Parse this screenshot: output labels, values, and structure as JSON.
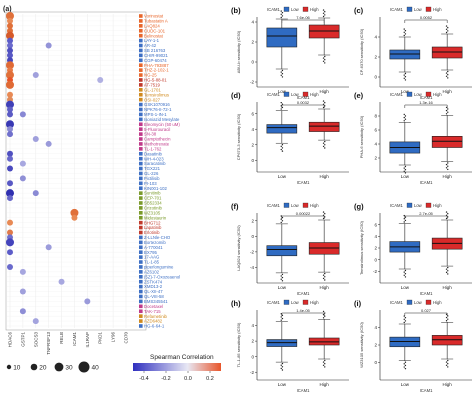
{
  "panel_a": {
    "label": "(a)",
    "drugs": [
      {
        "name": "Vorinostat",
        "color": "#e8662a"
      },
      {
        "name": "Tubastatin A",
        "color": "#e8662a"
      },
      {
        "name": "LAQ824",
        "color": "#e8662a"
      },
      {
        "name": "CUDC-101",
        "color": "#e8662a"
      },
      {
        "name": "Belinostat",
        "color": "#e8662a"
      },
      {
        "name": "LAY-1-1",
        "color": "#3d6fc4"
      },
      {
        "name": "AR-42",
        "color": "#3d6fc4"
      },
      {
        "name": "SB 216763",
        "color": "#3d6fc4"
      },
      {
        "name": "CHIR-99021",
        "color": "#3d6fc4"
      },
      {
        "name": "CGP-60474",
        "color": "#3d6fc4"
      },
      {
        "name": "PHA-793887",
        "color": "#e8662a"
      },
      {
        "name": "THZ-2-102-1",
        "color": "#e8662a"
      },
      {
        "name": "NG-25",
        "color": "#e8662a"
      },
      {
        "name": "HG-5-88-01",
        "color": "#c0392b"
      },
      {
        "name": "AT-7519",
        "color": "#c0392b"
      },
      {
        "name": "GL-1701",
        "color": "#d08a1e"
      },
      {
        "name": "Temsirolimus",
        "color": "#d08a1e"
      },
      {
        "name": "OSI-027",
        "color": "#d08a1e"
      },
      {
        "name": "GSK1070916",
        "color": "#3d6fc4"
      },
      {
        "name": "NPK76-II-72-1",
        "color": "#3d6fc4"
      },
      {
        "name": "MPS-1-IN-1",
        "color": "#3d6fc4"
      },
      {
        "name": "Isoniazid Mesylate",
        "color": "#3d6fc4"
      },
      {
        "name": "Bleomycin (50 uM)",
        "color": "#c03a8a"
      },
      {
        "name": "5-Fluorouracil",
        "color": "#c03a8a"
      },
      {
        "name": "SN-38",
        "color": "#c03a8a"
      },
      {
        "name": "Camptothecin",
        "color": "#c03a8a"
      },
      {
        "name": "Methotrexate",
        "color": "#c03a8a"
      },
      {
        "name": "TL-1-762",
        "color": "#c03a8a"
      },
      {
        "name": "Dasatinib",
        "color": "#3d6fc4"
      },
      {
        "name": "WH-4-023",
        "color": "#3d6fc4"
      },
      {
        "name": "Saracatinib",
        "color": "#3d6fc4"
      },
      {
        "name": "TGX221",
        "color": "#3d6fc4"
      },
      {
        "name": "GL-226",
        "color": "#3d6fc4"
      },
      {
        "name": "Pictilisib",
        "color": "#3d6fc4"
      },
      {
        "name": "PI-103",
        "color": "#3d6fc4"
      },
      {
        "name": "KIN001-102",
        "color": "#3d6fc4"
      },
      {
        "name": "Sunitinib",
        "color": "#7a9a2a"
      },
      {
        "name": "CEP-701",
        "color": "#7a9a2a"
      },
      {
        "name": "SB52334",
        "color": "#7a9a2a"
      },
      {
        "name": "Crizotinib",
        "color": "#7a9a2a"
      },
      {
        "name": "WZ3105",
        "color": "#7a9a2a"
      },
      {
        "name": "Midostaurin",
        "color": "#7a9a2a"
      },
      {
        "name": "BHG712",
        "color": "#c0392b"
      },
      {
        "name": "Lapatinib",
        "color": "#c0392b"
      },
      {
        "name": "Erlotinib",
        "color": "#c0392b"
      },
      {
        "name": "Z-LLNle-CHO",
        "color": "#3d6fc4"
      },
      {
        "name": "Bortezomib",
        "color": "#3d6fc4"
      },
      {
        "name": "A-770041",
        "color": "#3d6fc4"
      },
      {
        "name": "BX795",
        "color": "#3d6fc4"
      },
      {
        "name": "17-AAG",
        "color": "#3d6fc4"
      },
      {
        "name": "TL-1-85",
        "color": "#3d6fc4"
      },
      {
        "name": "piperlongumine",
        "color": "#3d6fc4"
      },
      {
        "name": "AZ6102",
        "color": "#3d6fc4"
      },
      {
        "name": "(5Z)-7-Oxozeaenol",
        "color": "#3d6fc4"
      },
      {
        "name": "ZSTK474",
        "color": "#3d6fc4"
      },
      {
        "name": "XMD13-2",
        "color": "#3d6fc4"
      },
      {
        "name": "QL-XII-47",
        "color": "#3d6fc4"
      },
      {
        "name": "QL-VIII-58",
        "color": "#3d6fc4"
      },
      {
        "name": "BMS345541",
        "color": "#3d6fc4"
      },
      {
        "name": "Docetaxel",
        "color": "#c03a8a"
      },
      {
        "name": "TAK-715",
        "color": "#c03a8a"
      },
      {
        "name": "Refametinib",
        "color": "#d08a1e"
      },
      {
        "name": "AZD6482",
        "color": "#d08a1e"
      },
      {
        "name": "HG-6-64-1",
        "color": "#3d6fc4"
      }
    ],
    "genes": [
      "HDAC6",
      "GSTP1",
      "SOCS3",
      "TNFRSF13",
      "RELB",
      "ICAM1",
      "IL1RAP",
      "PKD1",
      "LY96",
      "CD70"
    ],
    "size_legend": [
      10,
      20,
      30,
      40
    ],
    "colorbar": {
      "title": "Spearman Correlation",
      "ticks": [
        -0.4,
        -0.2,
        0.0,
        0.2
      ],
      "low_color": "#2f2fbf",
      "mid_color": "#e8e8f4",
      "high_color": "#e8552a"
    }
  },
  "chart_data": [
    {
      "type": "box",
      "panel": "(b)",
      "legend_title": "ICAM1",
      "groups": [
        "Low",
        "High"
      ],
      "colors": [
        "#2f6bc2",
        "#d92a2a"
      ],
      "pvalue": "7.6e-06",
      "xlabel": "ICAM1",
      "ylabel": "ABU-b sensitivity (IC50)",
      "ylim": [
        -2.5,
        4.5
      ],
      "ticks": [
        -2,
        0,
        2,
        4
      ],
      "boxes": [
        {
          "q1": 1.5,
          "median": 2.6,
          "q3": 3.4,
          "lo": -0.7,
          "hi": 4.3
        },
        {
          "q1": 2.4,
          "median": 3.1,
          "q3": 3.7,
          "lo": 0.7,
          "hi": 4.4
        }
      ]
    },
    {
      "type": "box",
      "panel": "(c)",
      "legend_title": "ICAM1",
      "groups": [
        "Low",
        "High"
      ],
      "colors": [
        "#2f6bc2",
        "#d92a2a"
      ],
      "pvalue": "0.0052",
      "xlabel": "ICAM1",
      "ylabel": "CP-6370 sensitivity (IC50)",
      "ylim": [
        -1,
        6
      ],
      "ticks": [
        0,
        2,
        4
      ],
      "boxes": [
        {
          "q1": 1.8,
          "median": 2.3,
          "q3": 2.7,
          "lo": 0.5,
          "hi": 4.0
        },
        {
          "q1": 1.9,
          "median": 2.5,
          "q3": 3.0,
          "lo": 0.7,
          "hi": 4.3
        }
      ]
    },
    {
      "type": "box",
      "panel": "(d)",
      "legend_title": "ICAM1",
      "groups": [
        "Low",
        "High"
      ],
      "colors": [
        "#2f6bc2",
        "#d92a2a"
      ],
      "pvalue": "0.0032",
      "xlabel": "ICAM1",
      "ylabel": "CP673-3 sensitivity (IC50)",
      "ylim": [
        -1.5,
        7.5
      ],
      "ticks": [
        0,
        2,
        4,
        6
      ],
      "boxes": [
        {
          "q1": 3.5,
          "median": 4.2,
          "q3": 4.6,
          "lo": 2.2,
          "hi": 6.4
        },
        {
          "q1": 3.7,
          "median": 4.4,
          "q3": 4.9,
          "lo": 2.6,
          "hi": 6.6
        }
      ]
    },
    {
      "type": "box",
      "panel": "(e)",
      "legend_title": "ICAM1",
      "groups": [
        "Low",
        "High"
      ],
      "colors": [
        "#2f6bc2",
        "#d92a2a"
      ],
      "pvalue": "1.3e-16",
      "xlabel": "ICAM1",
      "ylabel": "PHA-6 sensitivity (IC50)",
      "ylim": [
        0,
        10
      ],
      "ticks": [
        2,
        4,
        6,
        8
      ],
      "boxes": [
        {
          "q1": 2.7,
          "median": 3.5,
          "q3": 4.3,
          "lo": 1.0,
          "hi": 7.1
        },
        {
          "q1": 3.5,
          "median": 4.4,
          "q3": 5.1,
          "lo": 1.5,
          "hi": 8.1
        }
      ]
    },
    {
      "type": "box",
      "panel": "(f)",
      "legend_title": "ICAM1",
      "groups": [
        "Low",
        "High"
      ],
      "colors": [
        "#2f6bc2",
        "#d92a2a"
      ],
      "pvalue": "0.00022",
      "xlabel": "ICAM1",
      "ylabel": "LAQ824 sensitivity (IC50)",
      "ylim": [
        -6,
        3
      ],
      "ticks": [
        -4,
        -2,
        0,
        2
      ],
      "boxes": [
        {
          "q1": -2.5,
          "median": -1.7,
          "q3": -1.2,
          "lo": -4.7,
          "hi": 1.6
        },
        {
          "q1": -2.3,
          "median": -1.5,
          "q3": -0.8,
          "lo": -4.6,
          "hi": 2.1
        }
      ]
    },
    {
      "type": "box",
      "panel": "(g)",
      "legend_title": "ICAM1",
      "groups": [
        "Low",
        "High"
      ],
      "colors": [
        "#2f6bc2",
        "#d92a2a"
      ],
      "pvalue": "2.7e-05",
      "xlabel": "ICAM1",
      "ylabel": "Temsirolimus sensitivity (IC50)",
      "ylim": [
        -4,
        8
      ],
      "ticks": [
        -2,
        0,
        2,
        4,
        6
      ],
      "boxes": [
        {
          "q1": 1.3,
          "median": 2.2,
          "q3": 3.1,
          "lo": -1.6,
          "hi": 6.2
        },
        {
          "q1": 1.8,
          "median": 2.8,
          "q3": 3.7,
          "lo": -1.1,
          "hi": 6.8
        }
      ]
    },
    {
      "type": "box",
      "panel": "(h)",
      "legend_title": "ICAM1",
      "groups": [
        "Low",
        "High"
      ],
      "colors": [
        "#2f6bc2",
        "#d92a2a"
      ],
      "pvalue": "1.4e-05",
      "xlabel": "ICAM1",
      "ylabel": "TL-1-85 sensitivity (IC50)",
      "ylim": [
        -3,
        6
      ],
      "ticks": [
        -2,
        0,
        2,
        4
      ],
      "boxes": [
        {
          "q1": 1.3,
          "median": 1.8,
          "q3": 2.2,
          "lo": -0.7,
          "hi": 4.5
        },
        {
          "q1": 1.5,
          "median": 1.9,
          "q3": 2.4,
          "lo": -0.3,
          "hi": 4.8
        }
      ]
    },
    {
      "type": "box",
      "panel": "(i)",
      "legend_title": "ICAM1",
      "groups": [
        "Low",
        "High"
      ],
      "colors": [
        "#2f6bc2",
        "#d92a2a"
      ],
      "pvalue": "0.027",
      "xlabel": "ICAM1",
      "ylabel": "WZ3105 sensitivity (IC50)",
      "ylim": [
        -2,
        6
      ],
      "ticks": [
        0,
        2,
        4
      ],
      "boxes": [
        {
          "q1": 1.8,
          "median": 2.4,
          "q3": 2.9,
          "lo": 0.2,
          "hi": 4.4
        },
        {
          "q1": 2.0,
          "median": 2.6,
          "q3": 3.1,
          "lo": 0.4,
          "hi": 4.6
        }
      ]
    }
  ]
}
